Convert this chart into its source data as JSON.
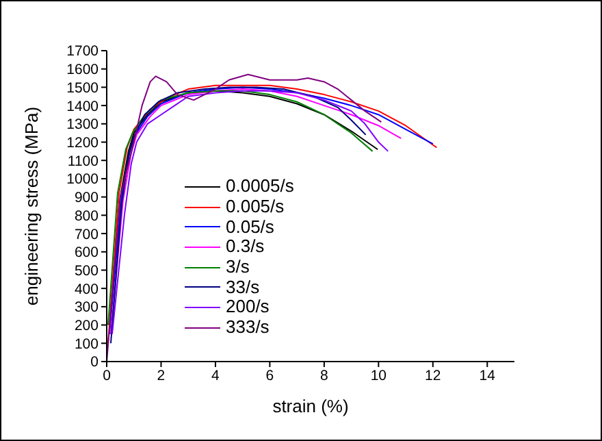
{
  "chart_data": {
    "type": "line",
    "xlabel": "strain (%)",
    "ylabel": "engineering stress (MPa)",
    "xlim": [
      0,
      15
    ],
    "xticks": [
      0,
      2,
      4,
      6,
      8,
      10,
      12,
      14
    ],
    "ylim": [
      0,
      1700
    ],
    "yticks": [
      0,
      100,
      200,
      300,
      400,
      500,
      600,
      700,
      800,
      900,
      1000,
      1100,
      1200,
      1300,
      1400,
      1500,
      1600,
      1700
    ],
    "grid": false,
    "legend": "left",
    "marker": "none",
    "line_style": "solid",
    "series": [
      {
        "name": "0.0005/s",
        "color": "#000000",
        "x": [
          0.1,
          0.5,
          0.8,
          1,
          1.5,
          2,
          3,
          4,
          5,
          6,
          7,
          8,
          9,
          9.97
        ],
        "values": [
          200,
          900,
          1150,
          1250,
          1350,
          1420,
          1470,
          1480,
          1470,
          1450,
          1410,
          1350,
          1260,
          1160
        ]
      },
      {
        "name": "0.005/s",
        "color": "#ff0000",
        "x": [
          0.05,
          0.45,
          0.75,
          1,
          1.6,
          2.2,
          3,
          4,
          5,
          6,
          7,
          8,
          9,
          10,
          11,
          12.14
        ],
        "values": [
          100,
          920,
          1170,
          1270,
          1380,
          1440,
          1490,
          1510,
          1510,
          1510,
          1490,
          1460,
          1420,
          1370,
          1290,
          1170
        ]
      },
      {
        "name": "0.05/s",
        "color": "#0000ff",
        "x": [
          0.1,
          0.55,
          0.85,
          1.05,
          1.5,
          2,
          3,
          4,
          5,
          6,
          7,
          8,
          9,
          10,
          11,
          12
        ],
        "values": [
          150,
          900,
          1150,
          1240,
          1340,
          1410,
          1470,
          1490,
          1500,
          1490,
          1470,
          1440,
          1400,
          1350,
          1270,
          1190
        ]
      },
      {
        "name": "0.3/s",
        "color": "#ff00ff",
        "x": [
          0.15,
          0.6,
          0.9,
          1.1,
          1.6,
          2,
          3,
          4,
          5,
          6,
          7,
          8,
          9,
          10,
          10.83
        ],
        "values": [
          150,
          880,
          1140,
          1240,
          1340,
          1400,
          1460,
          1480,
          1490,
          1480,
          1450,
          1400,
          1350,
          1290,
          1220
        ]
      },
      {
        "name": "3/s",
        "color": "#008000",
        "x": [
          0.05,
          0.4,
          0.7,
          0.95,
          1.4,
          2,
          3,
          4,
          5,
          6,
          7,
          8,
          9,
          9.78
        ],
        "values": [
          200,
          920,
          1160,
          1250,
          1350,
          1430,
          1470,
          1480,
          1480,
          1460,
          1420,
          1350,
          1250,
          1150
        ]
      },
      {
        "name": "33/s",
        "color": "#000080",
        "x": [
          0.15,
          0.55,
          0.8,
          1,
          1.4,
          1.9,
          2.6,
          3.6,
          4.5,
          5.5,
          6.5,
          7.6,
          8.5,
          9,
          9.53
        ],
        "values": [
          100,
          860,
          1120,
          1230,
          1350,
          1420,
          1470,
          1490,
          1500,
          1500,
          1490,
          1450,
          1390,
          1320,
          1240
        ]
      },
      {
        "name": "200/s",
        "color": "#8000ff",
        "x": [
          0.2,
          0.65,
          0.9,
          1.1,
          1.5,
          2,
          2.5,
          3,
          4,
          5,
          6,
          7,
          8,
          9,
          9.5,
          10,
          10.35
        ],
        "values": [
          150,
          800,
          1080,
          1200,
          1300,
          1350,
          1400,
          1450,
          1470,
          1480,
          1480,
          1470,
          1430,
          1370,
          1300,
          1200,
          1150
        ]
      },
      {
        "name": "333/s",
        "color": "#800080",
        "x": [
          0,
          0.5,
          1,
          1.3,
          1.6,
          1.8,
          2.2,
          2.6,
          3.2,
          3.6,
          4,
          4.5,
          5.2,
          6,
          7,
          7.4,
          8,
          8.5,
          9,
          9.5,
          10.1
        ],
        "values": [
          0,
          900,
          1200,
          1400,
          1530,
          1560,
          1530,
          1460,
          1430,
          1460,
          1490,
          1540,
          1570,
          1540,
          1540,
          1550,
          1530,
          1490,
          1430,
          1370,
          1310
        ]
      }
    ]
  }
}
